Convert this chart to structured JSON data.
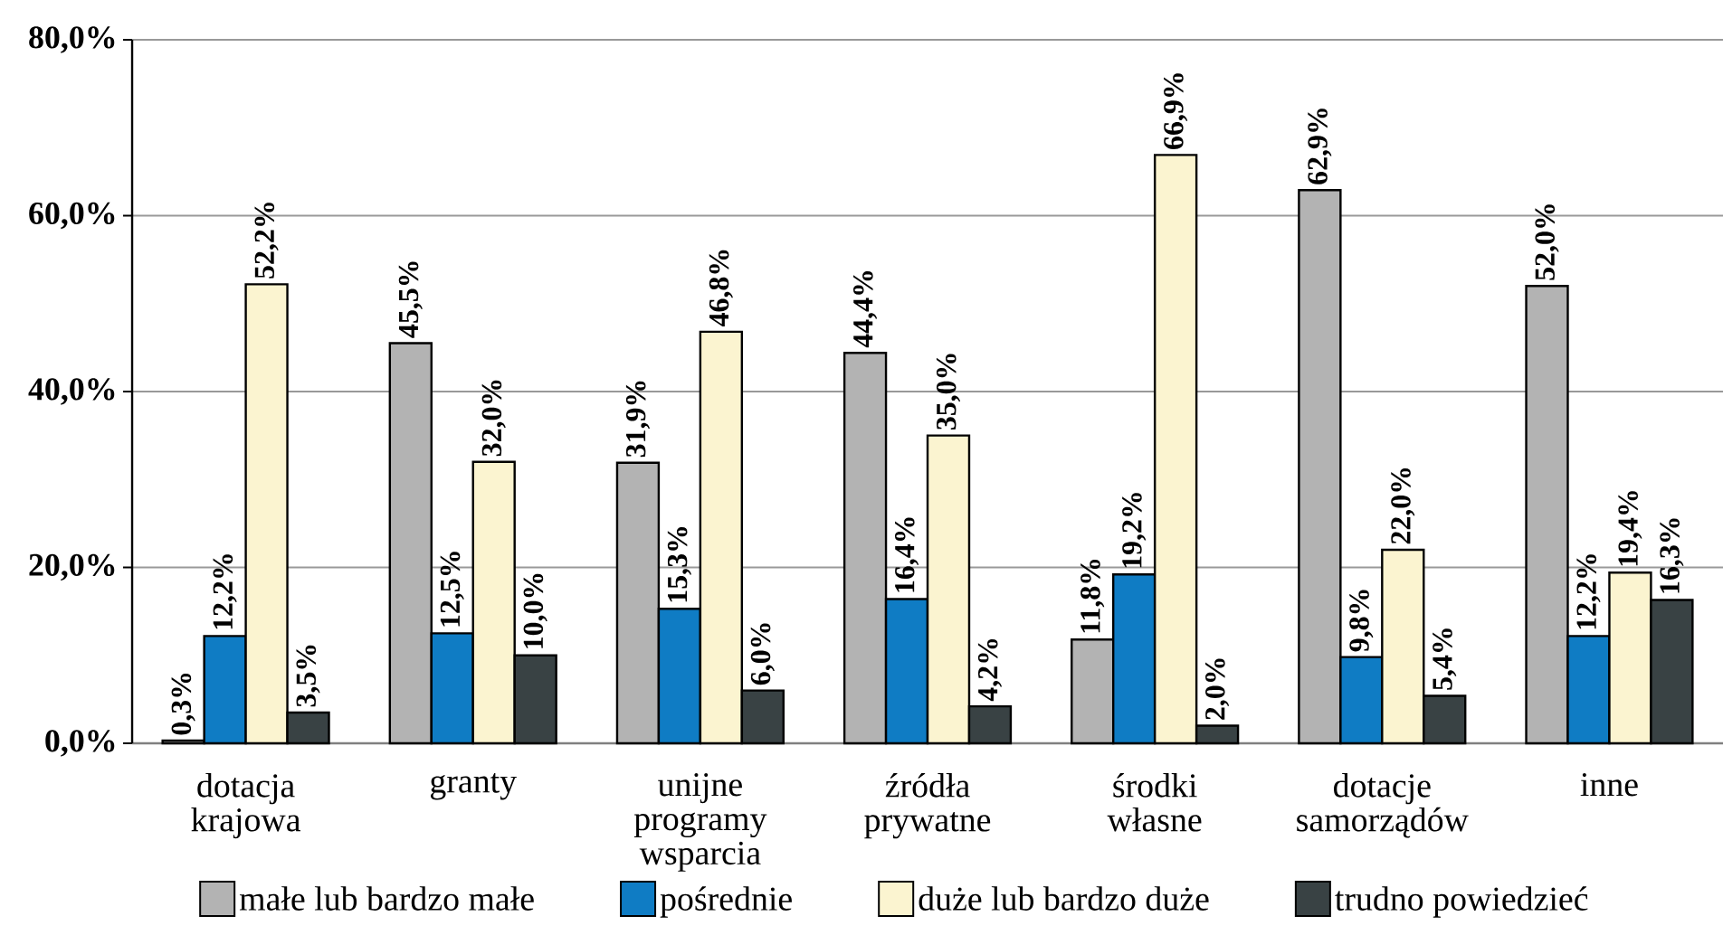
{
  "chart_data": {
    "type": "bar",
    "categories": [
      "dotacja krajowa",
      "granty",
      "unijne programy wsparcia",
      "źródła prywatne",
      "środki własne",
      "dotacje samorządów",
      "inne"
    ],
    "series": [
      {
        "name": "małe lub bardzo małe",
        "color": "#b3b3b3",
        "values": [
          0.3,
          45.5,
          31.9,
          44.4,
          11.8,
          62.9,
          52.0
        ],
        "value_labels": [
          "0,3%",
          "45,5%",
          "31,9%",
          "44,4%",
          "11,8%",
          "62,9%",
          "52,0%"
        ]
      },
      {
        "name": "pośrednie",
        "color": "#0f7cc4",
        "values": [
          12.2,
          12.5,
          15.3,
          16.4,
          19.2,
          9.8,
          12.2
        ],
        "value_labels": [
          "12,2%",
          "12,5%",
          "15,3%",
          "16,4%",
          "19,2%",
          "9,8%",
          "12,2%"
        ]
      },
      {
        "name": "duże lub bardzo duże",
        "color": "#fbf4d0",
        "values": [
          52.2,
          32.0,
          46.8,
          35.0,
          66.9,
          22.0,
          19.4
        ],
        "value_labels": [
          "52,2%",
          "32,0%",
          "46,8%",
          "35,0%",
          "66,9%",
          "22,0%",
          "19,4%"
        ]
      },
      {
        "name": "trudno powiedzieć",
        "color": "#394244",
        "values": [
          3.5,
          10.0,
          6.0,
          4.2,
          2.0,
          5.4,
          16.3
        ],
        "value_labels": [
          "3,5%",
          "10,0%",
          "6,0%",
          "4,2%",
          "2,0%",
          "5,4%",
          "16,3%"
        ]
      }
    ],
    "ylim": [
      0,
      80
    ],
    "yticks": [
      {
        "value": 0,
        "label": "0,0%"
      },
      {
        "value": 20,
        "label": "20,0%"
      },
      {
        "value": 40,
        "label": "40,0%"
      },
      {
        "value": 60,
        "label": "60,0%"
      },
      {
        "value": 80,
        "label": "80,0%"
      }
    ],
    "grid": "y",
    "legend": "bottom"
  }
}
